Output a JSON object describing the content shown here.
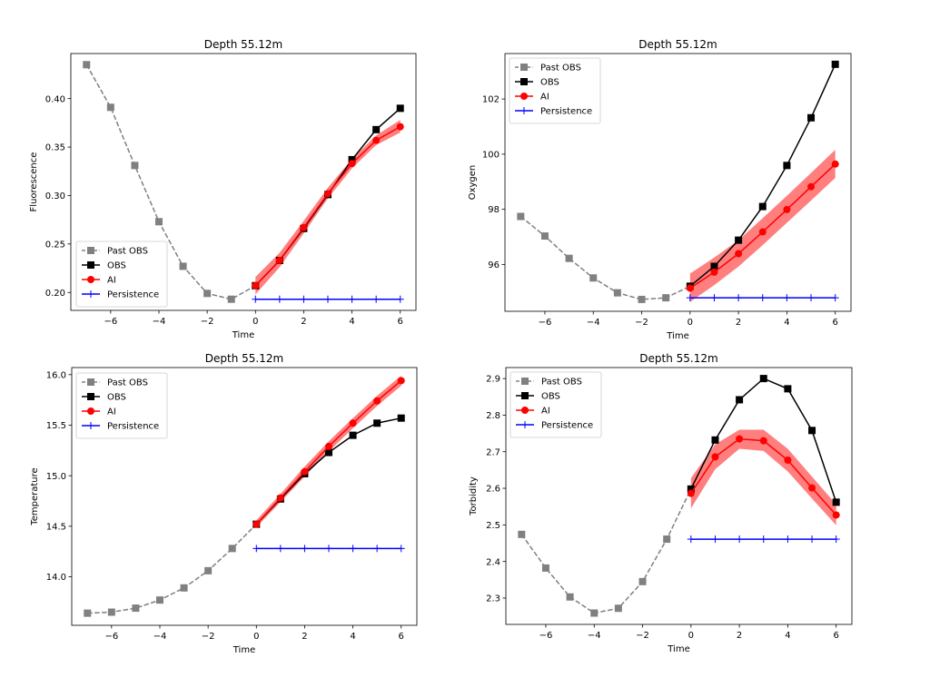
{
  "chart_data": [
    {
      "type": "line",
      "title": "Depth 55.12m",
      "xlabel": "Time",
      "ylabel": "Fluorescence",
      "xlim": [
        -7.65,
        6.65
      ],
      "ylim": [
        0.1815,
        0.4465
      ],
      "xticks": [
        -6,
        -4,
        -2,
        0,
        2,
        4,
        6
      ],
      "xtick_labels": [
        "−6",
        "−4",
        "−2",
        "0",
        "2",
        "4",
        "6"
      ],
      "yticks": [
        0.2,
        0.25,
        0.3,
        0.35,
        0.4
      ],
      "ytick_labels": [
        "0.20",
        "0.25",
        "0.30",
        "0.35",
        "0.40"
      ],
      "legend_position": "lower-left",
      "grid": false,
      "series": [
        {
          "name": "Past OBS",
          "style": "dashed-square",
          "color": "#808080",
          "x": [
            -7,
            -6,
            -5,
            -4,
            -3,
            -2,
            -1,
            0
          ],
          "y": [
            0.435,
            0.391,
            0.331,
            0.273,
            0.227,
            0.199,
            0.193,
            0.207
          ],
          "marker_count": 7
        },
        {
          "name": "OBS",
          "style": "solid-square",
          "color": "#000000",
          "x": [
            0,
            1,
            2,
            3,
            4,
            5,
            6
          ],
          "y": [
            0.207,
            0.233,
            0.266,
            0.301,
            0.337,
            0.368,
            0.39
          ]
        },
        {
          "name": "AI",
          "style": "solid-circle",
          "color": "#ff0000",
          "x": [
            0,
            1,
            2,
            3,
            4,
            5,
            6
          ],
          "y": [
            0.207,
            0.233,
            0.267,
            0.302,
            0.333,
            0.357,
            0.371
          ],
          "band_lower": [
            0.198,
            0.226,
            0.261,
            0.297,
            0.328,
            0.352,
            0.365
          ],
          "band_upper": [
            0.216,
            0.241,
            0.274,
            0.308,
            0.338,
            0.362,
            0.378
          ]
        },
        {
          "name": "Persistence",
          "style": "solid-plus",
          "color": "#0000ff",
          "x": [
            0,
            1,
            2,
            3,
            4,
            5,
            6
          ],
          "y": [
            0.193,
            0.193,
            0.193,
            0.193,
            0.193,
            0.193,
            0.193
          ]
        }
      ]
    },
    {
      "type": "line",
      "title": "Depth 55.12m",
      "xlabel": "Time",
      "ylabel": "Oxygen",
      "xlim": [
        -7.65,
        6.65
      ],
      "ylim": [
        94.3,
        103.65
      ],
      "xticks": [
        -6,
        -4,
        -2,
        0,
        2,
        4,
        6
      ],
      "xtick_labels": [
        "−6",
        "−4",
        "−2",
        "0",
        "2",
        "4",
        "6"
      ],
      "yticks": [
        96,
        98,
        100,
        102
      ],
      "ytick_labels": [
        "96",
        "98",
        "100",
        "102"
      ],
      "legend_position": "upper-left",
      "grid": false,
      "series": [
        {
          "name": "Past OBS",
          "style": "dashed-square",
          "color": "#808080",
          "x": [
            -7,
            -6,
            -5,
            -4,
            -3,
            -2,
            -1,
            0
          ],
          "y": [
            97.74,
            97.03,
            96.22,
            95.51,
            94.97,
            94.73,
            94.79,
            95.21
          ],
          "marker_count": 7
        },
        {
          "name": "OBS",
          "style": "solid-square",
          "color": "#000000",
          "x": [
            0,
            1,
            2,
            3,
            4,
            5,
            6
          ],
          "y": [
            95.21,
            95.93,
            96.88,
            98.1,
            99.59,
            101.32,
            103.26
          ]
        },
        {
          "name": "AI",
          "style": "solid-circle",
          "color": "#ff0000",
          "x": [
            0,
            1,
            2,
            3,
            4,
            5,
            6
          ],
          "y": [
            95.14,
            95.72,
            96.39,
            97.18,
            97.99,
            98.82,
            99.64
          ],
          "band_lower": [
            94.64,
            95.25,
            95.92,
            96.7,
            97.51,
            98.32,
            99.14
          ],
          "band_upper": [
            95.67,
            96.25,
            96.88,
            97.68,
            98.49,
            99.32,
            100.16
          ]
        },
        {
          "name": "Persistence",
          "style": "solid-plus",
          "color": "#0000ff",
          "x": [
            0,
            1,
            2,
            3,
            4,
            5,
            6
          ],
          "y": [
            94.79,
            94.79,
            94.79,
            94.79,
            94.79,
            94.79,
            94.79
          ]
        }
      ]
    },
    {
      "type": "line",
      "title": "Depth 55.12m",
      "xlabel": "Time",
      "ylabel": "Temperature",
      "xlim": [
        -7.65,
        6.65
      ],
      "ylim": [
        13.52,
        16.07
      ],
      "xticks": [
        -6,
        -4,
        -2,
        0,
        2,
        4,
        6
      ],
      "xtick_labels": [
        "−6",
        "−4",
        "−2",
        "0",
        "2",
        "4",
        "6"
      ],
      "yticks": [
        14.0,
        14.5,
        15.0,
        15.5,
        16.0
      ],
      "ytick_labels": [
        "14.0",
        "14.5",
        "15.0",
        "15.5",
        "16.0"
      ],
      "legend_position": "upper-left",
      "grid": false,
      "series": [
        {
          "name": "Past OBS",
          "style": "dashed-square",
          "color": "#808080",
          "x": [
            -7,
            -6,
            -5,
            -4,
            -3,
            -2,
            -1,
            0
          ],
          "y": [
            13.64,
            13.65,
            13.69,
            13.77,
            13.89,
            14.06,
            14.28,
            14.52
          ],
          "marker_count": 7
        },
        {
          "name": "OBS",
          "style": "solid-square",
          "color": "#000000",
          "x": [
            0,
            1,
            2,
            3,
            4,
            5,
            6
          ],
          "y": [
            14.52,
            14.77,
            15.02,
            15.23,
            15.4,
            15.52,
            15.57
          ]
        },
        {
          "name": "AI",
          "style": "solid-circle",
          "color": "#ff0000",
          "x": [
            0,
            1,
            2,
            3,
            4,
            5,
            6
          ],
          "y": [
            14.52,
            14.78,
            15.04,
            15.29,
            15.52,
            15.74,
            15.94
          ],
          "band_lower": [
            14.49,
            14.74,
            14.99,
            15.24,
            15.47,
            15.69,
            15.89
          ],
          "band_upper": [
            14.56,
            14.82,
            15.09,
            15.34,
            15.57,
            15.79,
            15.99
          ]
        },
        {
          "name": "Persistence",
          "style": "solid-plus",
          "color": "#0000ff",
          "x": [
            0,
            1,
            2,
            3,
            4,
            5,
            6
          ],
          "y": [
            14.28,
            14.28,
            14.28,
            14.28,
            14.28,
            14.28,
            14.28
          ]
        }
      ]
    },
    {
      "type": "line",
      "title": "Depth 55.12m",
      "xlabel": "Time",
      "ylabel": "Torbidity",
      "xlim": [
        -7.65,
        6.65
      ],
      "ylim": [
        2.228,
        2.93
      ],
      "xticks": [
        -6,
        -4,
        -2,
        0,
        2,
        4,
        6
      ],
      "xtick_labels": [
        "−6",
        "−4",
        "−2",
        "0",
        "2",
        "4",
        "6"
      ],
      "yticks": [
        2.3,
        2.4,
        2.5,
        2.6,
        2.7,
        2.8,
        2.9
      ],
      "ytick_labels": [
        "2.3",
        "2.4",
        "2.5",
        "2.6",
        "2.7",
        "2.8",
        "2.9"
      ],
      "legend_position": "upper-left",
      "grid": false,
      "series": [
        {
          "name": "Past OBS",
          "style": "dashed-square",
          "color": "#808080",
          "x": [
            -7,
            -6,
            -5,
            -4,
            -3,
            -2,
            -1,
            0
          ],
          "y": [
            2.474,
            2.382,
            2.303,
            2.259,
            2.272,
            2.345,
            2.461,
            2.598
          ],
          "marker_count": 7
        },
        {
          "name": "OBS",
          "style": "solid-square",
          "color": "#000000",
          "x": [
            0,
            1,
            2,
            3,
            4,
            5,
            6
          ],
          "y": [
            2.598,
            2.732,
            2.842,
            2.9,
            2.872,
            2.758,
            2.562
          ]
        },
        {
          "name": "AI",
          "style": "solid-circle",
          "color": "#ff0000",
          "x": [
            0,
            1,
            2,
            3,
            4,
            5,
            6
          ],
          "y": [
            2.586,
            2.686,
            2.735,
            2.73,
            2.677,
            2.601,
            2.527
          ],
          "band_lower": [
            2.545,
            2.652,
            2.708,
            2.702,
            2.646,
            2.572,
            2.499
          ],
          "band_upper": [
            2.628,
            2.72,
            2.76,
            2.76,
            2.708,
            2.632,
            2.556
          ]
        },
        {
          "name": "Persistence",
          "style": "solid-plus",
          "color": "#0000ff",
          "x": [
            0,
            1,
            2,
            3,
            4,
            5,
            6
          ],
          "y": [
            2.461,
            2.461,
            2.461,
            2.461,
            2.461,
            2.461,
            2.461
          ]
        }
      ]
    }
  ]
}
